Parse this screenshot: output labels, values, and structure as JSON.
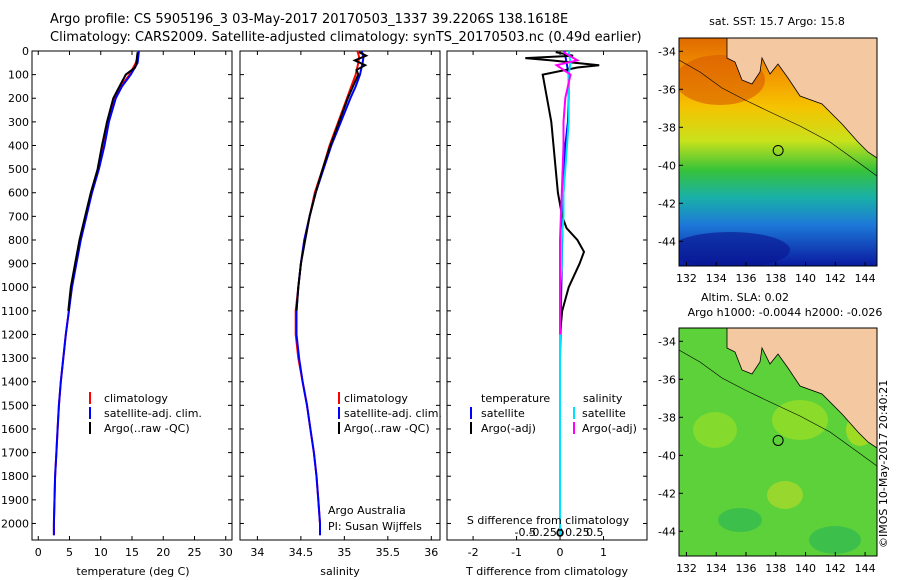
{
  "header": {
    "line1": "Argo profile: CS 5905196_3 03-May-2017 20170503_1337 39.2206S 138.1618E",
    "line2": "Climatology: CARS2009. Satellite-adjusted climatology: synTS_20170503.nc (0.49d earlier)"
  },
  "footer": {
    "stamp": "©IMOS 10-May-2017 20:40:21"
  },
  "chart_data": [
    {
      "id": "temperature",
      "type": "line",
      "xlabel": "temperature (deg C)",
      "ylabel": "",
      "xlim": [
        -1,
        31
      ],
      "ylim": [
        2070,
        0
      ],
      "xticks": [
        0,
        5,
        10,
        15,
        20,
        25,
        30
      ],
      "yticks": [
        0,
        100,
        200,
        300,
        400,
        500,
        600,
        700,
        800,
        900,
        1000,
        1100,
        1200,
        1300,
        1400,
        1500,
        1600,
        1700,
        1800,
        1900,
        2000
      ],
      "legend": {
        "position": "middle-left",
        "items": [
          {
            "label": "climatology",
            "color": "#ff0000"
          },
          {
            "label": "satellite-adj. clim.",
            "color": "#0000ff"
          },
          {
            "label": "Argo(..raw -QC)",
            "color": "#000000"
          }
        ]
      },
      "series": [
        {
          "name": "climatology",
          "color": "#ff0000",
          "x": [
            16,
            15.9,
            15.6,
            14.6,
            13.2,
            12.2,
            11.2,
            10.5,
            9.6,
            8.5,
            7.6,
            6.7,
            6.0,
            5.3,
            4.9,
            4.4,
            4.0,
            3.6,
            3.3,
            3.1,
            2.9,
            2.7,
            2.6,
            2.5,
            2.5
          ],
          "depth": [
            0,
            25,
            50,
            100,
            150,
            200,
            300,
            400,
            500,
            600,
            700,
            800,
            900,
            1000,
            1100,
            1200,
            1300,
            1400,
            1500,
            1600,
            1700,
            1800,
            1900,
            2000,
            2050
          ]
        },
        {
          "name": "satellite-adj. clim.",
          "color": "#0000ff",
          "x": [
            16.1,
            16.0,
            15.9,
            14.8,
            13.4,
            12.4,
            11.3,
            10.6,
            9.7,
            8.6,
            7.7,
            6.8,
            6.1,
            5.4,
            4.9,
            4.4,
            4.0,
            3.6,
            3.3,
            3.1,
            2.9,
            2.7,
            2.6,
            2.5,
            2.5
          ],
          "depth": [
            0,
            25,
            50,
            100,
            150,
            200,
            300,
            400,
            500,
            600,
            700,
            800,
            900,
            1000,
            1100,
            1200,
            1300,
            1400,
            1500,
            1600,
            1700,
            1800,
            1900,
            2000,
            2050
          ]
        },
        {
          "name": "Argo(..raw -QC)",
          "color": "#000000",
          "x": [
            15.9,
            15.8,
            15.7,
            15.5,
            14.0,
            13.0,
            12.0,
            11.0,
            10.2,
            9.5,
            8.4,
            7.5,
            6.6,
            5.9,
            5.2,
            4.8
          ],
          "depth": [
            5,
            25,
            50,
            70,
            100,
            150,
            200,
            300,
            400,
            500,
            600,
            700,
            800,
            900,
            1000,
            1100
          ]
        }
      ]
    },
    {
      "id": "salinity",
      "type": "line",
      "xlabel": "salinity",
      "xlim": [
        33.8,
        36.1
      ],
      "ylim": [
        2070,
        0
      ],
      "xticks": [
        34,
        34.5,
        35,
        35.5,
        36
      ],
      "legend": {
        "position": "middle-right",
        "items": [
          {
            "label": "climatology",
            "color": "#ff0000"
          },
          {
            "label": "satellite-adj. clim.",
            "color": "#0000ff"
          },
          {
            "label": "Argo(..raw -QC)",
            "color": "#000000"
          }
        ]
      },
      "annotations": [
        "Argo Australia",
        "PI: Susan Wijffels"
      ],
      "series": [
        {
          "name": "climatology",
          "color": "#ff0000",
          "x": [
            35.15,
            35.17,
            35.16,
            35.13,
            35.08,
            35.03,
            34.93,
            34.83,
            34.75,
            34.66,
            34.6,
            34.54,
            34.5,
            34.47,
            34.44,
            34.44,
            34.47,
            34.52,
            34.57,
            34.61,
            34.65,
            34.68,
            34.7,
            34.72,
            34.72
          ],
          "depth": [
            0,
            25,
            50,
            100,
            150,
            200,
            300,
            400,
            500,
            600,
            700,
            800,
            900,
            1000,
            1100,
            1200,
            1300,
            1400,
            1500,
            1600,
            1700,
            1800,
            1900,
            2000,
            2050
          ]
        },
        {
          "name": "satellite-adj. clim.",
          "color": "#0000ff",
          "x": [
            35.2,
            35.22,
            35.21,
            35.18,
            35.13,
            35.07,
            34.96,
            34.85,
            34.76,
            34.67,
            34.6,
            34.54,
            34.5,
            34.47,
            34.45,
            34.45,
            34.48,
            34.52,
            34.57,
            34.61,
            34.65,
            34.68,
            34.7,
            34.72,
            34.72
          ],
          "depth": [
            0,
            25,
            50,
            100,
            150,
            200,
            300,
            400,
            500,
            600,
            700,
            800,
            900,
            1000,
            1100,
            1200,
            1300,
            1400,
            1500,
            1600,
            1700,
            1800,
            1900,
            2000,
            2050
          ]
        },
        {
          "name": "Argo(..raw -QC)",
          "color": "#000000",
          "x": [
            35.17,
            35.25,
            35.12,
            35.24,
            35.14,
            35.16,
            35.1,
            35.04,
            34.94,
            34.84,
            34.75,
            34.67,
            34.6,
            34.55,
            34.5,
            34.47,
            34.45
          ],
          "depth": [
            5,
            20,
            40,
            60,
            80,
            100,
            150,
            200,
            300,
            400,
            500,
            600,
            700,
            800,
            900,
            1000,
            1100
          ]
        }
      ]
    },
    {
      "id": "differences",
      "type": "line",
      "xlabel": "T difference from climatology",
      "xlim": [
        -2.6,
        2.0
      ],
      "ylim": [
        2070,
        0
      ],
      "xticks": [
        -2,
        -1,
        0,
        1
      ],
      "top_axis": {
        "label": "S difference from climatology",
        "ticks": [
          -0.5,
          -0.25,
          0,
          0.25,
          0.5
        ],
        "scale": 0.25
      },
      "legend": {
        "position": "middle",
        "items": [
          {
            "label": "temperature",
            "color": "",
            "heading": true
          },
          {
            "label": "satellite",
            "color": "#0000ff"
          },
          {
            "label": "Argo(-adj)",
            "color": "#000000"
          },
          {
            "label": "salinity",
            "color": "",
            "heading": true
          },
          {
            "label": "satellite",
            "color": "#00e0ff"
          },
          {
            "label": "Argo(-adj)",
            "color": "#ff00ff"
          }
        ]
      },
      "series": [
        {
          "name": "temperature satellite",
          "color": "#0000ff",
          "x": [
            0.1,
            0.15,
            0.2,
            0.2,
            0.2,
            0.18,
            0.12,
            0.1,
            0.08,
            0.06,
            0.05,
            0.04,
            0.03,
            0.02,
            0.01,
            0.0,
            0.0,
            0.0,
            0.0,
            0.0,
            0.0
          ],
          "depth": [
            0,
            50,
            100,
            150,
            200,
            300,
            400,
            500,
            600,
            700,
            800,
            900,
            1000,
            1100,
            1200,
            1300,
            1400,
            1500,
            1700,
            1900,
            2050
          ]
        },
        {
          "name": "temperature Argo(-adj)",
          "color": "#000000",
          "x": [
            -0.1,
            0.3,
            -0.8,
            -0.2,
            0.9,
            0.4,
            -0.4,
            -0.3,
            -0.2,
            -0.15,
            -0.1,
            -0.05,
            0.05,
            0.15,
            0.4,
            0.55,
            0.45,
            0.2,
            0.05,
            0.0
          ],
          "depth": [
            5,
            20,
            30,
            40,
            60,
            70,
            100,
            200,
            300,
            400,
            500,
            600,
            700,
            750,
            800,
            850,
            900,
            1000,
            1100,
            1200
          ]
        },
        {
          "name": "salinity satellite",
          "color": "#00e0ff",
          "x": [
            0.05,
            0.06,
            0.05,
            0.05,
            0.05,
            0.04,
            0.03,
            0.02,
            0.02,
            0.01,
            0.01,
            0.0,
            0.0,
            0.0,
            0.0,
            0.0,
            0.0
          ],
          "depth": [
            0,
            50,
            100,
            200,
            300,
            400,
            500,
            600,
            700,
            800,
            900,
            1000,
            1200,
            1400,
            1600,
            1800,
            2050
          ]
        },
        {
          "name": "salinity Argo(-adj)",
          "color": "#ff00ff",
          "x": [
            0.02,
            0.1,
            -0.02,
            0.06,
            0.03,
            0.02,
            0.02,
            0.01,
            0.0,
            0.0,
            0.0,
            0.0
          ],
          "depth": [
            5,
            40,
            60,
            100,
            200,
            300,
            400,
            600,
            800,
            1000,
            1100,
            1200
          ]
        }
      ],
      "points": [
        {
          "x": 0.0,
          "depth": 2040,
          "color": "#000000"
        }
      ]
    }
  ],
  "maps": [
    {
      "id": "sst",
      "title": "sat. SST: 15.7  Argo: 15.8",
      "lon_ticks": [
        132,
        134,
        136,
        138,
        140,
        142,
        144
      ],
      "lat_ticks": [
        -34,
        -36,
        -38,
        -40,
        -42,
        -44
      ],
      "lon_range": [
        131.5,
        144.8
      ],
      "lat_range": [
        -45.3,
        -33.3
      ],
      "argo_position": {
        "lon": 138.16,
        "lat": -39.22
      }
    },
    {
      "id": "sla",
      "title_line1": "Altim. SLA: 0.02",
      "title_line2": "Argo h1000: -0.0044 h2000: -0.026",
      "lon_ticks": [
        132,
        134,
        136,
        138,
        140,
        142,
        144
      ],
      "lat_ticks": [
        -34,
        -36,
        -38,
        -40,
        -42,
        -44
      ],
      "lon_range": [
        131.5,
        144.8
      ],
      "lat_range": [
        -45.3,
        -33.3
      ],
      "argo_position": {
        "lon": 138.16,
        "lat": -39.22
      }
    }
  ]
}
